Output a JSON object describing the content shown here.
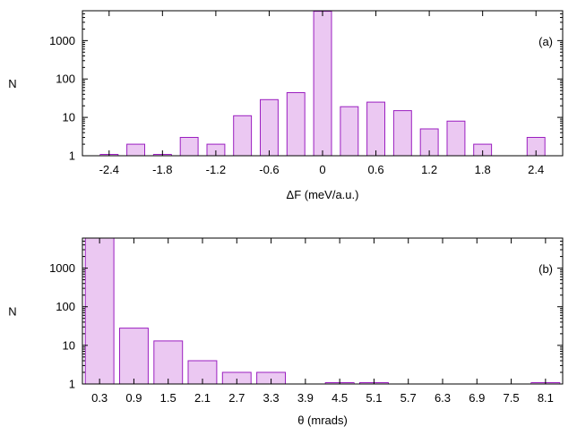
{
  "chart_data": [
    {
      "type": "bar",
      "panel_label": "(a)",
      "xlabel": "ΔF (meV/a.u.)",
      "ylabel": "N",
      "y_scale": "log",
      "ylim": [
        1,
        6000
      ],
      "y_ticks": [
        1,
        10,
        100,
        1000
      ],
      "y_tick_labels": [
        "1",
        "10",
        "100",
        "1000"
      ],
      "x_range": [
        -2.7,
        2.7
      ],
      "x_ticks": [
        -2.4,
        -1.8,
        -1.2,
        -0.6,
        0,
        0.6,
        1.2,
        1.8,
        2.4
      ],
      "x_tick_labels": [
        "-2.4",
        "-1.8",
        "-1.2",
        "-0.6",
        "0",
        "0.6",
        "1.2",
        "1.8",
        "2.4"
      ],
      "bar_width": 0.2,
      "x": [
        -2.4,
        -2.1,
        -1.8,
        -1.5,
        -1.2,
        -0.9,
        -0.6,
        -0.3,
        0,
        0.3,
        0.6,
        0.9,
        1.2,
        1.5,
        1.8,
        2.1,
        2.4
      ],
      "values": [
        1,
        2,
        1,
        3,
        2,
        11,
        29,
        44,
        5800,
        19,
        25,
        15,
        5,
        8,
        2,
        0,
        3
      ],
      "grid": false,
      "colors": {
        "bar_fill": "#ebc8f2",
        "bar_stroke": "#9b1fc0"
      }
    },
    {
      "type": "bar",
      "panel_label": "(b)",
      "xlabel": "θ (mrads)",
      "ylabel": "N",
      "y_scale": "log",
      "ylim": [
        1,
        6000
      ],
      "y_ticks": [
        1,
        10,
        100,
        1000
      ],
      "y_tick_labels": [
        "1",
        "10",
        "100",
        "1000"
      ],
      "x_range": [
        0,
        8.4
      ],
      "x_ticks": [
        0.3,
        0.9,
        1.5,
        2.1,
        2.7,
        3.3,
        3.9,
        4.5,
        5.1,
        5.7,
        6.3,
        6.9,
        7.5,
        8.1
      ],
      "x_tick_labels": [
        "0.3",
        "0.9",
        "1.5",
        "2.1",
        "2.7",
        "3.3",
        "3.9",
        "4.5",
        "5.1",
        "5.7",
        "6.3",
        "6.9",
        "7.5",
        "8.1"
      ],
      "bar_width": 0.5,
      "x": [
        0.3,
        0.9,
        1.5,
        2.1,
        2.7,
        3.3,
        3.9,
        4.5,
        5.1,
        5.7,
        6.3,
        6.9,
        7.5,
        8.1
      ],
      "values": [
        6000,
        28,
        13,
        4,
        2,
        2,
        0,
        1,
        1,
        0,
        0,
        0,
        0,
        1
      ],
      "grid": false,
      "colors": {
        "bar_fill": "#ebc8f2",
        "bar_stroke": "#9b1fc0"
      }
    }
  ]
}
